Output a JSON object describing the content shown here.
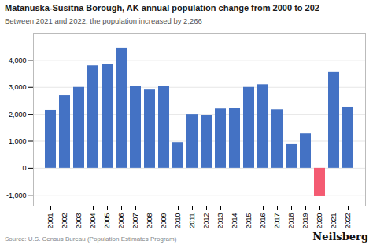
{
  "chart_data": {
    "type": "bar",
    "title": "Matanuska-Susitna Borough, AK annual population change from 2000 to 202",
    "subtitle": "Between 2021 and 2022, the population increased by 2,266",
    "annotations": [
      "Source: U.S. Census Bureau (Population Estimates Program)",
      "Neilsberg"
    ],
    "categories": [
      "2001",
      "2002",
      "2003",
      "2004",
      "2005",
      "2006",
      "2007",
      "2008",
      "2009",
      "2010",
      "2011",
      "2012",
      "2013",
      "2014",
      "2015",
      "2016",
      "2017",
      "2018",
      "2019",
      "2020",
      "2021",
      "2022"
    ],
    "values": [
      2150,
      2700,
      3000,
      3800,
      3850,
      4450,
      3050,
      2900,
      3050,
      950,
      2000,
      1950,
      2200,
      2230,
      3000,
      3100,
      2170,
      900,
      1270,
      -1050,
      3550,
      2266
    ],
    "colors": [
      "#4472C4",
      "#4472C4",
      "#4472C4",
      "#4472C4",
      "#4472C4",
      "#4472C4",
      "#4472C4",
      "#4472C4",
      "#4472C4",
      "#4472C4",
      "#4472C4",
      "#4472C4",
      "#4472C4",
      "#4472C4",
      "#4472C4",
      "#4472C4",
      "#4472C4",
      "#4472C4",
      "#4472C4",
      "#F45B72",
      "#4472C4",
      "#4472C4"
    ],
    "ylim": [
      -1400,
      5000
    ],
    "yticks": [
      {
        "value": -1000,
        "label": "-1,000"
      },
      0,
      {
        "value": 1000,
        "label": "1,000"
      },
      {
        "value": 2000,
        "label": "2,000"
      },
      {
        "value": 3000,
        "label": "3,000"
      },
      {
        "value": 4000,
        "label": "4,000"
      }
    ],
    "grid": true
  }
}
